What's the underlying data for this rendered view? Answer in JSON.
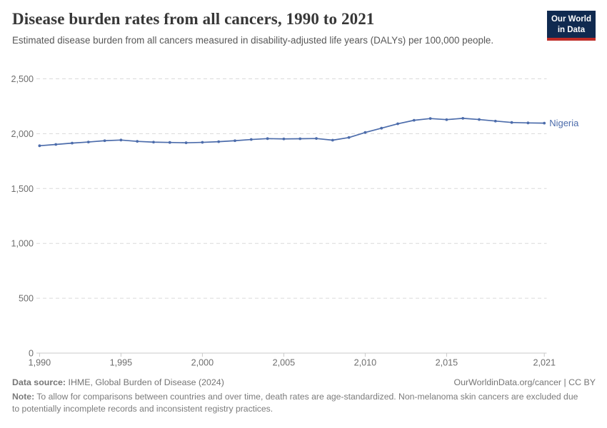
{
  "header": {
    "title": "Disease burden rates from all cancers, 1990 to 2021",
    "subtitle": "Estimated disease burden from all cancers measured in disability-adjusted life years (DALYs) per 100,000 people."
  },
  "logo": {
    "line1": "Our World",
    "line2": "in Data",
    "bg_color": "#102a50",
    "accent_color": "#bf2b26"
  },
  "chart_data": {
    "type": "line",
    "title": "Disease burden rates from all cancers, 1990 to 2021",
    "xlabel": "",
    "ylabel": "",
    "x": [
      1990,
      1991,
      1992,
      1993,
      1994,
      1995,
      1996,
      1997,
      1998,
      1999,
      2000,
      2001,
      2002,
      2003,
      2004,
      2005,
      2006,
      2007,
      2008,
      2009,
      2010,
      2011,
      2012,
      2013,
      2014,
      2015,
      2016,
      2017,
      2018,
      2019,
      2020,
      2021
    ],
    "series": [
      {
        "name": "Nigeria",
        "color": "#4c6cab",
        "values": [
          1890,
          1902,
          1914,
          1924,
          1936,
          1942,
          1930,
          1923,
          1920,
          1917,
          1921,
          1927,
          1936,
          1947,
          1955,
          1952,
          1954,
          1956,
          1941,
          1965,
          2011,
          2050,
          2090,
          2122,
          2138,
          2128,
          2140,
          2129,
          2115,
          2102,
          2098,
          2096
        ]
      }
    ],
    "xlim": [
      1990,
      2021
    ],
    "ylim": [
      0,
      2500
    ],
    "xticks": [
      1990,
      1995,
      2000,
      2005,
      2010,
      2015,
      2021
    ],
    "yticks": [
      0,
      500,
      1000,
      1500,
      2000,
      2500
    ],
    "grid": "dashed-horizontal",
    "legend_position": "end-of-line-label",
    "marker": "dot-per-year"
  },
  "footer": {
    "datasource_label": "Data source:",
    "datasource_value": " IHME, Global Burden of Disease (2024)",
    "link": "OurWorldinData.org/cancer | CC BY",
    "note_label": "Note:",
    "note_text": " To allow for comparisons between countries and over time, death rates are age-standardized. Non-melanoma skin cancers are excluded due to potentially incomplete records and inconsistent registry practices."
  }
}
